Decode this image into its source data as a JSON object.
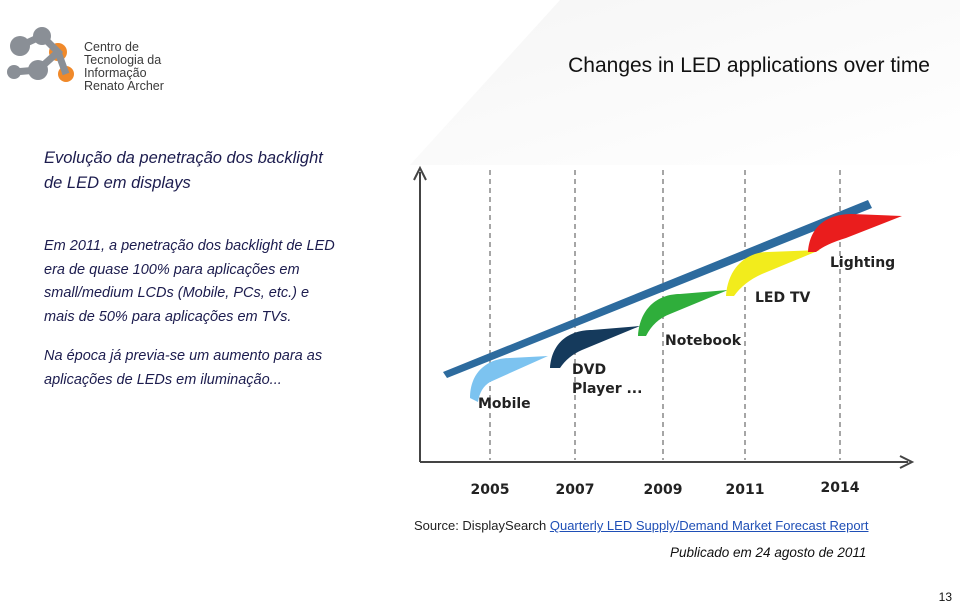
{
  "logo": {
    "lines": [
      "Centro de",
      "Tecnologia da",
      "Informação",
      "Renato Archer"
    ]
  },
  "title": "Changes in LED applications over time",
  "heading": [
    "Evolução da penetração dos backlight",
    "de LED em displays"
  ],
  "paragraph_1": [
    "Em 2011, a penetração dos backlight de LED",
    "era de quase 100% para aplicações em",
    "small/medium LCDs (Mobile, PCs, etc.)  e",
    "mais de 50% para aplicações em TVs."
  ],
  "paragraph_2": [
    "Na época já previa-se um aumento para as",
    "aplicações de LEDs em iluminação..."
  ],
  "diagram": {
    "labels": [
      "Mobile",
      "DVD",
      "Player ...",
      "Notebook",
      "LED TV",
      "Lighting"
    ],
    "years": [
      "2005",
      "2007",
      "2009",
      "2011",
      "2014"
    ]
  },
  "source": {
    "prefix": "Source: DisplaySearch",
    "link": "Quarterly LED Supply/Demand Market Forecast Report"
  },
  "published": "Publicado em 24 agosto de 2011",
  "page_number": "13"
}
